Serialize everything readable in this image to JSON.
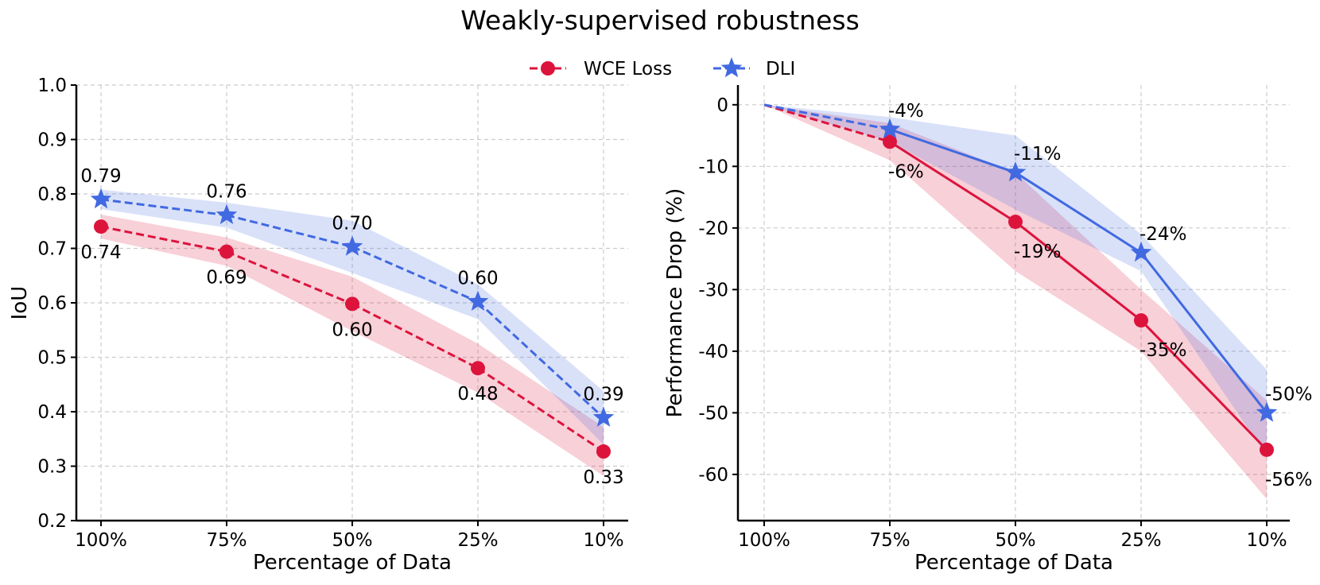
{
  "title": "Weakly-supervised robustness",
  "legend": [
    {
      "name": "WCE Loss",
      "color": "#dc143c",
      "marker": "circle"
    },
    {
      "name": "DLI",
      "color": "#4169e1",
      "marker": "star"
    }
  ],
  "chart_data": [
    {
      "type": "line",
      "categories": [
        "100%",
        "75%",
        "50%",
        "25%",
        "10%"
      ],
      "xlabel": "Percentage of Data",
      "ylabel": "IoU",
      "ylim": [
        0.2,
        1.0
      ],
      "yticks": [
        0.2,
        0.3,
        0.4,
        0.5,
        0.6,
        0.7,
        0.8,
        0.9,
        1.0
      ],
      "ytick_labels": [
        "0.2",
        "0.3",
        "0.4",
        "0.5",
        "0.6",
        "0.7",
        "0.8",
        "0.9",
        "1.0"
      ],
      "grid": true,
      "series": [
        {
          "name": "WCE Loss",
          "color": "#dc143c",
          "marker": "circle",
          "linestyle": "dashed",
          "values": [
            0.74,
            0.694,
            0.598,
            0.48,
            0.327
          ],
          "band_low": [
            0.718,
            0.668,
            0.548,
            0.435,
            0.282
          ],
          "band_high": [
            0.762,
            0.72,
            0.648,
            0.525,
            0.372
          ],
          "labels": [
            "0.74",
            "0.69",
            "0.60",
            "0.48",
            "0.33"
          ],
          "label_pos": "below"
        },
        {
          "name": "DLI",
          "color": "#4169e1",
          "marker": "star",
          "linestyle": "dashed",
          "values": [
            0.79,
            0.761,
            0.703,
            0.602,
            0.389
          ],
          "band_low": [
            0.772,
            0.738,
            0.655,
            0.57,
            0.34
          ],
          "band_high": [
            0.808,
            0.784,
            0.751,
            0.634,
            0.438
          ],
          "labels": [
            "0.79",
            "0.76",
            "0.70",
            "0.60",
            "0.39"
          ],
          "label_pos": "above"
        }
      ]
    },
    {
      "type": "line",
      "categories": [
        "100%",
        "75%",
        "50%",
        "25%",
        "10%"
      ],
      "xlabel": "Percentage of Data",
      "ylabel": "Performance Drop (%)",
      "ylim": [
        -67.5,
        3.2
      ],
      "yticks": [
        0,
        -10,
        -20,
        -30,
        -40,
        -50,
        -60
      ],
      "ytick_labels": [
        "0",
        "-10",
        "-20",
        "-30",
        "-40",
        "-50",
        "-60"
      ],
      "grid": true,
      "series": [
        {
          "name": "WCE Loss",
          "color": "#dc143c",
          "marker": "circle",
          "linestyle_segments": [
            "dashed",
            "solid",
            "solid",
            "solid"
          ],
          "values": [
            0,
            -6,
            -19,
            -35,
            -56
          ],
          "band_low": [
            0,
            -9,
            -27,
            -40,
            -64
          ],
          "band_high": [
            0,
            -3,
            -11,
            -30,
            -48
          ],
          "labels": [
            "",
            "-6%",
            "-19%",
            "-35%",
            "-56%"
          ],
          "label_pos": "below"
        },
        {
          "name": "DLI",
          "color": "#4169e1",
          "marker": "star",
          "linestyle_segments": [
            "dashed",
            "solid",
            "solid",
            "solid"
          ],
          "values": [
            0,
            -4,
            -11,
            -24,
            -50
          ],
          "band_low": [
            0,
            -6,
            -17,
            -27,
            -57
          ],
          "band_high": [
            0,
            -2,
            -5,
            -21,
            -43
          ],
          "labels": [
            "",
            "-4%",
            "-11%",
            "-24%",
            "-50%"
          ],
          "label_pos": "above"
        }
      ]
    }
  ]
}
